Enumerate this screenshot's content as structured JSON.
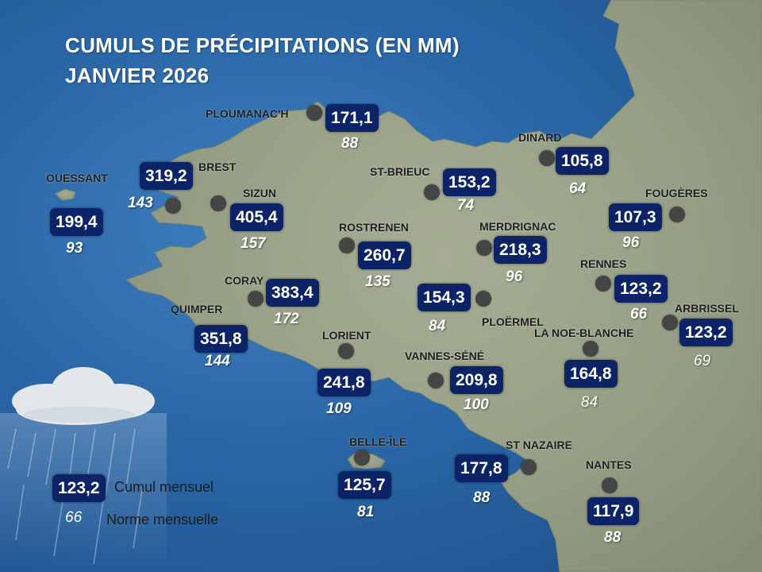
{
  "title": {
    "line1": "CUMULS DE PRÉCIPITATIONS (EN MM)",
    "line2": "JANVIER 2026"
  },
  "stations": [
    {
      "name": "PLOUMANAC'H",
      "cumul": "171,1",
      "norme": "88"
    },
    {
      "name": "OUESSANT",
      "cumul": "199,4",
      "norme": "93"
    },
    {
      "name": "BREST",
      "cumul": "319,2",
      "norme": "143"
    },
    {
      "name": "SIZUN",
      "cumul": "405,4",
      "norme": "157"
    },
    {
      "name": "CORAY",
      "cumul": "383,4",
      "norme": "172"
    },
    {
      "name": "QUIMPER",
      "cumul": "351,8",
      "norme": "144"
    },
    {
      "name": "ROSTRENEN",
      "cumul": "260,7",
      "norme": "135"
    },
    {
      "name": "ST-BRIEUC",
      "cumul": "153,2",
      "norme": "74"
    },
    {
      "name": "LORIENT",
      "cumul": "241,8",
      "norme": "109"
    },
    {
      "name": "BELLE-ÎLE",
      "cumul": "125,7",
      "norme": "81"
    },
    {
      "name": "VANNES-SÉNÉ",
      "cumul": "209,8",
      "norme": "100"
    },
    {
      "name": "PLOËRMEL",
      "cumul": "154,3",
      "norme": "84"
    },
    {
      "name": "MERDRIGNAC",
      "cumul": "218,3",
      "norme": "96"
    },
    {
      "name": "DINARD",
      "cumul": "105,8",
      "norme": "64"
    },
    {
      "name": "FOUGÈRES",
      "cumul": "107,3",
      "norme": "96"
    },
    {
      "name": "RENNES",
      "cumul": "123,2",
      "norme": "66"
    },
    {
      "name": "ARBRISSEL",
      "cumul": "123,2",
      "norme": "69"
    },
    {
      "name": "LA NOE-BLANCHE",
      "cumul": "164,8",
      "norme": "84"
    },
    {
      "name": "ST NAZAIRE",
      "cumul": "177,8",
      "norme": "88"
    },
    {
      "name": "NANTES",
      "cumul": "117,9",
      "norme": "88"
    }
  ],
  "legend": {
    "sample_cumul": "123,2",
    "sample_norme": "66",
    "cumul_label": "Cumul mensuel",
    "norme_label": "Norme mensuelle"
  },
  "icons": {
    "station_marker": "dark-circle-icon",
    "weather": "rain-cloud-icon"
  },
  "colors": {
    "sea": "#2a66a6",
    "land": "#9aa388",
    "cumul_box": "#0c2467",
    "station_marker": "#454545"
  }
}
